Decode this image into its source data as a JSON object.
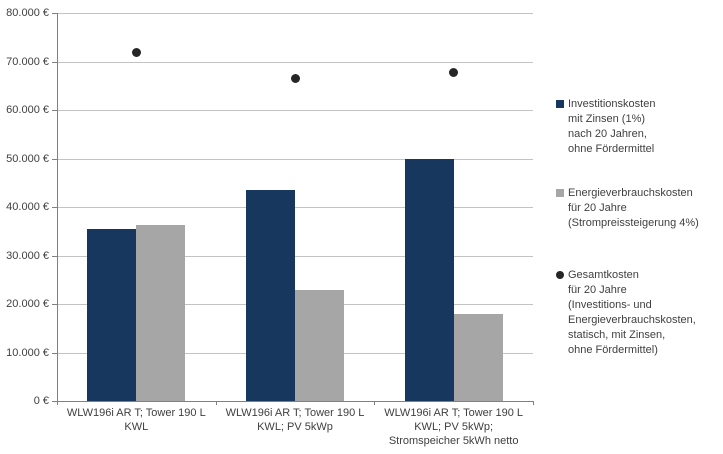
{
  "colors": {
    "investment_bar": "#17375E",
    "energy_bar": "#A6A6A6",
    "total_dot": "#262626",
    "gridline": "#C3C3C3",
    "axis": "#808080",
    "text": "#404040",
    "background": "#FFFFFF"
  },
  "chart_data": {
    "type": "bar",
    "categories": [
      "WLW196i AR T; Tower 190 L KWL",
      "WLW196i AR T; Tower 190 L KWL; PV 5kWp",
      "WLW196i AR T; Tower 190 L KWL; PV 5kWp; Stromspeicher 5kWh netto"
    ],
    "category_label_lines": [
      "WLW196i AR T; Tower 190 L\nKWL",
      "WLW196i AR T; Tower 190 L\nKWL; PV 5kWp",
      "WLW196i AR T; Tower 190 L\nKWL; PV 5kWp;\nStromspeicher 5kWh netto"
    ],
    "series": [
      {
        "name": "Investitionskosten mit Zinsen (1%) nach 20 Jahren, ohne Fördermittel",
        "type": "bar",
        "color": "#17375E",
        "values": [
          35500,
          43600,
          49900
        ]
      },
      {
        "name": "Energieverbrauchskosten für 20 Jahre (Strompreissteigerung 4%)",
        "type": "bar",
        "color": "#A6A6A6",
        "values": [
          36300,
          22800,
          17900
        ]
      },
      {
        "name": "Gesamtkosten für 20 Jahre (Investitions- und Energieverbrauchskosten, statisch, mit Zinsen, ohne Fördermittel)",
        "type": "scatter",
        "color": "#262626",
        "values": [
          71800,
          66400,
          67800
        ]
      }
    ],
    "ylim": [
      0,
      80000
    ],
    "y_tick_step": 10000,
    "y_ticks": [
      "80.000 €",
      "70.000 €",
      "60.000 €",
      "50.000 €",
      "40.000 €",
      "30.000 €",
      "20.000 €",
      "10.000 €",
      "0 €"
    ],
    "grid": true,
    "legend_position": "right"
  },
  "legend": {
    "items": [
      {
        "marker": "square",
        "color": "#17375E",
        "label": "Investitionskosten\nmit Zinsen (1%)\nnach 20 Jahren,\nohne Fördermittel"
      },
      {
        "marker": "square",
        "color": "#A6A6A6",
        "label": "Energieverbrauchskosten\nfür 20 Jahre\n(Strompreissteigerung 4%)"
      },
      {
        "marker": "circle",
        "color": "#262626",
        "label": "Gesamtkosten\nfür 20 Jahre\n(Investitions- und\nEnergieverbrauchskosten,\nstatisch, mit Zinsen,\nohne Fördermittel)"
      }
    ]
  }
}
